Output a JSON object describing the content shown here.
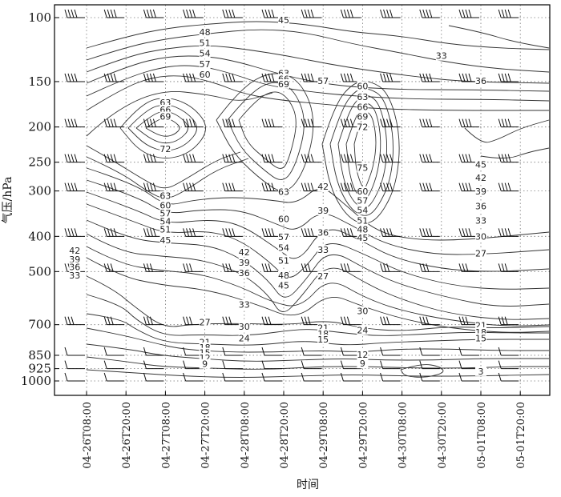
{
  "chart_data": {
    "type": "contour",
    "xlabel": "时间",
    "ylabel": "气压/hPa",
    "y_scale": "log",
    "ylim": [
      1000,
      100
    ],
    "y_ticks": [
      {
        "value": 100,
        "label": "100"
      },
      {
        "value": 150,
        "label": "150"
      },
      {
        "value": 200,
        "label": "200"
      },
      {
        "value": 250,
        "label": "250"
      },
      {
        "value": 300,
        "label": "300"
      },
      {
        "value": 400,
        "label": "400"
      },
      {
        "value": 500,
        "label": "500"
      },
      {
        "value": 700,
        "label": "700"
      },
      {
        "value": 850,
        "label": "850"
      },
      {
        "value": 925,
        "label": "925"
      },
      {
        "value": 1000,
        "label": "1000"
      }
    ],
    "x_ticks": [
      "04-26T08:00",
      "04-26T20:00",
      "04-27T08:00",
      "04-27T20:00",
      "04-28T08:00",
      "04-28T20:00",
      "04-29T08:00",
      "04-29T20:00",
      "04-30T08:00",
      "04-30T20:00",
      "05-01T08:00",
      "05-01T20:00"
    ],
    "grid": true,
    "grid_style": "dotted",
    "barb_levels": [
      100,
      150,
      200,
      250,
      300,
      400,
      500,
      700,
      850,
      925,
      1000
    ],
    "contour_labels": [
      {
        "text": "48",
        "t": 3.0,
        "p": 110
      },
      {
        "text": "51",
        "t": 3.0,
        "p": 118
      },
      {
        "text": "54",
        "t": 3.0,
        "p": 126
      },
      {
        "text": "57",
        "t": 3.0,
        "p": 135
      },
      {
        "text": "60",
        "t": 3.0,
        "p": 144
      },
      {
        "text": "45",
        "t": 5.0,
        "p": 102
      },
      {
        "text": "63",
        "t": 2.0,
        "p": 172
      },
      {
        "text": "66",
        "t": 2.0,
        "p": 180
      },
      {
        "text": "69",
        "t": 2.0,
        "p": 188
      },
      {
        "text": "72",
        "t": 2.0,
        "p": 231
      },
      {
        "text": "63",
        "t": 5.0,
        "p": 143
      },
      {
        "text": "66",
        "t": 5.0,
        "p": 148
      },
      {
        "text": "69",
        "t": 5.0,
        "p": 153
      },
      {
        "text": "57",
        "t": 6.0,
        "p": 150
      },
      {
        "text": "60",
        "t": 7.0,
        "p": 155
      },
      {
        "text": "63",
        "t": 7.0,
        "p": 166
      },
      {
        "text": "66",
        "t": 7.0,
        "p": 177
      },
      {
        "text": "69",
        "t": 7.0,
        "p": 188
      },
      {
        "text": "72",
        "t": 7.0,
        "p": 201
      },
      {
        "text": "75",
        "t": 7.0,
        "p": 260
      },
      {
        "text": "33",
        "t": 9.0,
        "p": 128
      },
      {
        "text": "36",
        "t": 10.0,
        "p": 150
      },
      {
        "text": "45",
        "t": 10.0,
        "p": 255
      },
      {
        "text": "42",
        "t": 10.0,
        "p": 277
      },
      {
        "text": "39",
        "t": 10.0,
        "p": 302
      },
      {
        "text": "36",
        "t": 10.0,
        "p": 332
      },
      {
        "text": "33",
        "t": 10.0,
        "p": 364
      },
      {
        "text": "30",
        "t": 10.0,
        "p": 402
      },
      {
        "text": "27",
        "t": 10.0,
        "p": 448
      },
      {
        "text": "63",
        "t": 2.0,
        "p": 311
      },
      {
        "text": "60",
        "t": 2.0,
        "p": 330
      },
      {
        "text": "57",
        "t": 2.0,
        "p": 347
      },
      {
        "text": "54",
        "t": 2.0,
        "p": 365
      },
      {
        "text": "51",
        "t": 2.0,
        "p": 384
      },
      {
        "text": "45",
        "t": 2.0,
        "p": 412
      },
      {
        "text": "42",
        "t": -0.3,
        "p": 440
      },
      {
        "text": "39",
        "t": -0.3,
        "p": 465
      },
      {
        "text": "36",
        "t": -0.3,
        "p": 488
      },
      {
        "text": "33",
        "t": -0.3,
        "p": 514
      },
      {
        "text": "63",
        "t": 5.0,
        "p": 303
      },
      {
        "text": "60",
        "t": 5.0,
        "p": 360
      },
      {
        "text": "57",
        "t": 5.0,
        "p": 403
      },
      {
        "text": "54",
        "t": 5.0,
        "p": 432
      },
      {
        "text": "51",
        "t": 5.0,
        "p": 468
      },
      {
        "text": "48",
        "t": 5.0,
        "p": 515
      },
      {
        "text": "45",
        "t": 5.0,
        "p": 548
      },
      {
        "text": "42",
        "t": 4.0,
        "p": 444
      },
      {
        "text": "39",
        "t": 4.0,
        "p": 475
      },
      {
        "text": "36",
        "t": 4.0,
        "p": 507
      },
      {
        "text": "33",
        "t": 4.0,
        "p": 620
      },
      {
        "text": "42",
        "t": 6.0,
        "p": 293
      },
      {
        "text": "39",
        "t": 6.0,
        "p": 341
      },
      {
        "text": "36",
        "t": 6.0,
        "p": 392
      },
      {
        "text": "33",
        "t": 6.0,
        "p": 438
      },
      {
        "text": "27",
        "t": 6.0,
        "p": 517
      },
      {
        "text": "60",
        "t": 7.0,
        "p": 302
      },
      {
        "text": "57",
        "t": 7.0,
        "p": 320
      },
      {
        "text": "54",
        "t": 7.0,
        "p": 340
      },
      {
        "text": "51",
        "t": 7.0,
        "p": 364
      },
      {
        "text": "48",
        "t": 7.0,
        "p": 384
      },
      {
        "text": "45",
        "t": 7.0,
        "p": 405
      },
      {
        "text": "30",
        "t": 7.0,
        "p": 645
      },
      {
        "text": "24",
        "t": 7.0,
        "p": 728
      },
      {
        "text": "27",
        "t": 3.0,
        "p": 692
      },
      {
        "text": "30",
        "t": 4.0,
        "p": 712
      },
      {
        "text": "24",
        "t": 4.0,
        "p": 767
      },
      {
        "text": "21",
        "t": 3.0,
        "p": 786
      },
      {
        "text": "18",
        "t": 3.0,
        "p": 812
      },
      {
        "text": "15",
        "t": 3.0,
        "p": 840
      },
      {
        "text": "12",
        "t": 3.0,
        "p": 868
      },
      {
        "text": "9",
        "t": 3.0,
        "p": 902
      },
      {
        "text": "21",
        "t": 6.0,
        "p": 718
      },
      {
        "text": "18",
        "t": 6.0,
        "p": 746
      },
      {
        "text": "15",
        "t": 6.0,
        "p": 773
      },
      {
        "text": "12",
        "t": 7.0,
        "p": 850
      },
      {
        "text": "9",
        "t": 7.0,
        "p": 900
      },
      {
        "text": "21",
        "t": 10.0,
        "p": 707
      },
      {
        "text": "18",
        "t": 10.0,
        "p": 737
      },
      {
        "text": "15",
        "t": 10.0,
        "p": 766
      },
      {
        "text": "3",
        "t": 10.0,
        "p": 945
      }
    ]
  }
}
